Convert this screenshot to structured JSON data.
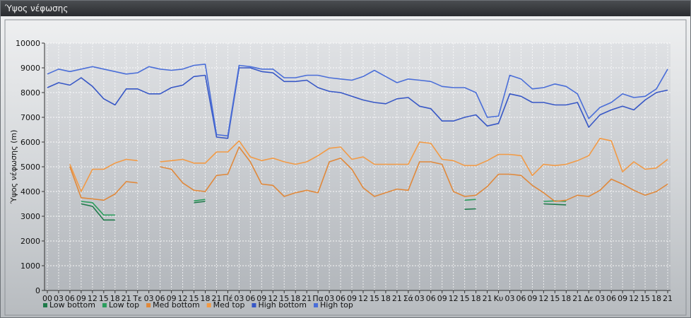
{
  "window": {
    "title": "Ύψος νέφωσης"
  },
  "chart_data": {
    "type": "line",
    "title": "",
    "xlabel": "",
    "ylabel": "Ύψος νέφωσης (m)",
    "ylim": [
      0,
      10000
    ],
    "yticks": [
      0,
      1000,
      2000,
      3000,
      4000,
      5000,
      6000,
      7000,
      8000,
      9000,
      10000
    ],
    "grid": true,
    "legend_position": "bottom-left",
    "categories": [
      "00",
      "03",
      "06",
      "09",
      "12",
      "15",
      "18",
      "21",
      "Τε",
      "03",
      "06",
      "09",
      "12",
      "15",
      "18",
      "21",
      "Πέ",
      "03",
      "06",
      "09",
      "12",
      "15",
      "18",
      "21",
      "Πα",
      "03",
      "06",
      "09",
      "12",
      "15",
      "18",
      "21",
      "Σά",
      "03",
      "06",
      "09",
      "12",
      "15",
      "18",
      "21",
      "Κυ",
      "03",
      "06",
      "09",
      "12",
      "15",
      "18",
      "21",
      "Δε",
      "03",
      "06",
      "09",
      "12",
      "15",
      "18",
      "21"
    ],
    "series": [
      {
        "name": "Low bottom",
        "color": "#1f7a4a",
        "values": [
          null,
          null,
          null,
          3500,
          3400,
          2850,
          2850,
          null,
          null,
          null,
          null,
          null,
          null,
          3550,
          3600,
          null,
          null,
          null,
          null,
          null,
          null,
          null,
          null,
          null,
          null,
          null,
          null,
          null,
          null,
          null,
          null,
          null,
          null,
          null,
          null,
          null,
          null,
          3280,
          3300,
          null,
          null,
          null,
          null,
          null,
          3500,
          3480,
          3460,
          null,
          null,
          null,
          null,
          null,
          null,
          null,
          null,
          null
        ]
      },
      {
        "name": "Low top",
        "color": "#2a9d5c",
        "values": [
          null,
          null,
          null,
          3600,
          3550,
          3050,
          3050,
          null,
          null,
          null,
          null,
          null,
          null,
          3620,
          3680,
          null,
          null,
          null,
          null,
          null,
          null,
          null,
          null,
          null,
          null,
          null,
          null,
          null,
          null,
          null,
          null,
          null,
          null,
          null,
          null,
          null,
          null,
          3650,
          3680,
          null,
          null,
          null,
          null,
          null,
          3600,
          3620,
          3600,
          null,
          null,
          null,
          null,
          null,
          null,
          null,
          null,
          null
        ]
      },
      {
        "name": "Med bottom",
        "color": "#e0883a",
        "values": [
          null,
          null,
          5000,
          3750,
          3700,
          3650,
          3900,
          4400,
          4350,
          null,
          5000,
          4900,
          4350,
          4050,
          4000,
          4650,
          4700,
          5800,
          5200,
          4300,
          4250,
          3800,
          3950,
          4050,
          3950,
          5200,
          5350,
          4900,
          4150,
          3800,
          3950,
          4100,
          4050,
          5200,
          5200,
          5100,
          4000,
          3800,
          3850,
          4200,
          4700,
          4700,
          4650,
          4250,
          3950,
          3600,
          3650,
          3850,
          3800,
          4050,
          4500,
          4300,
          4050,
          3850,
          4000,
          4300
        ]
      },
      {
        "name": "Med top",
        "color": "#f29a45",
        "values": [
          null,
          null,
          5100,
          4000,
          4900,
          4900,
          5150,
          5300,
          5250,
          null,
          5200,
          5250,
          5300,
          5150,
          5150,
          5600,
          5600,
          6050,
          5400,
          5250,
          5350,
          5200,
          5100,
          5200,
          5450,
          5750,
          5800,
          5300,
          5400,
          5100,
          5100,
          5100,
          5100,
          6000,
          5950,
          5300,
          5250,
          5050,
          5050,
          5250,
          5500,
          5500,
          5450,
          4650,
          5100,
          5050,
          5100,
          5250,
          5450,
          6150,
          6050,
          4800,
          5200,
          4900,
          4950,
          5300
        ]
      },
      {
        "name": "High bottom",
        "color": "#3757c6",
        "values": [
          8200,
          8400,
          8300,
          8600,
          8250,
          7750,
          7500,
          8150,
          8150,
          7950,
          7950,
          8200,
          8300,
          8650,
          8700,
          6200,
          6150,
          9000,
          9000,
          8850,
          8800,
          8450,
          8450,
          8500,
          8200,
          8050,
          8000,
          7850,
          7700,
          7600,
          7550,
          7750,
          7800,
          7450,
          7350,
          6850,
          6850,
          7000,
          7100,
          6650,
          6750,
          7950,
          7850,
          7600,
          7600,
          7500,
          7500,
          7600,
          6600,
          7100,
          7300,
          7450,
          7300,
          7700,
          8000,
          8100
        ]
      },
      {
        "name": "High top",
        "color": "#4a6ed8",
        "values": [
          8750,
          8950,
          8850,
          8950,
          9050,
          8950,
          8850,
          8750,
          8800,
          9050,
          8950,
          8900,
          8950,
          9100,
          9150,
          6300,
          6250,
          9100,
          9050,
          8950,
          8950,
          8600,
          8600,
          8700,
          8700,
          8600,
          8550,
          8500,
          8650,
          8900,
          8650,
          8400,
          8550,
          8500,
          8450,
          8250,
          8200,
          8200,
          8000,
          7000,
          7050,
          8700,
          8550,
          8150,
          8200,
          8350,
          8250,
          7950,
          6950,
          7400,
          7600,
          7950,
          7800,
          7850,
          8150,
          8950
        ]
      }
    ]
  }
}
